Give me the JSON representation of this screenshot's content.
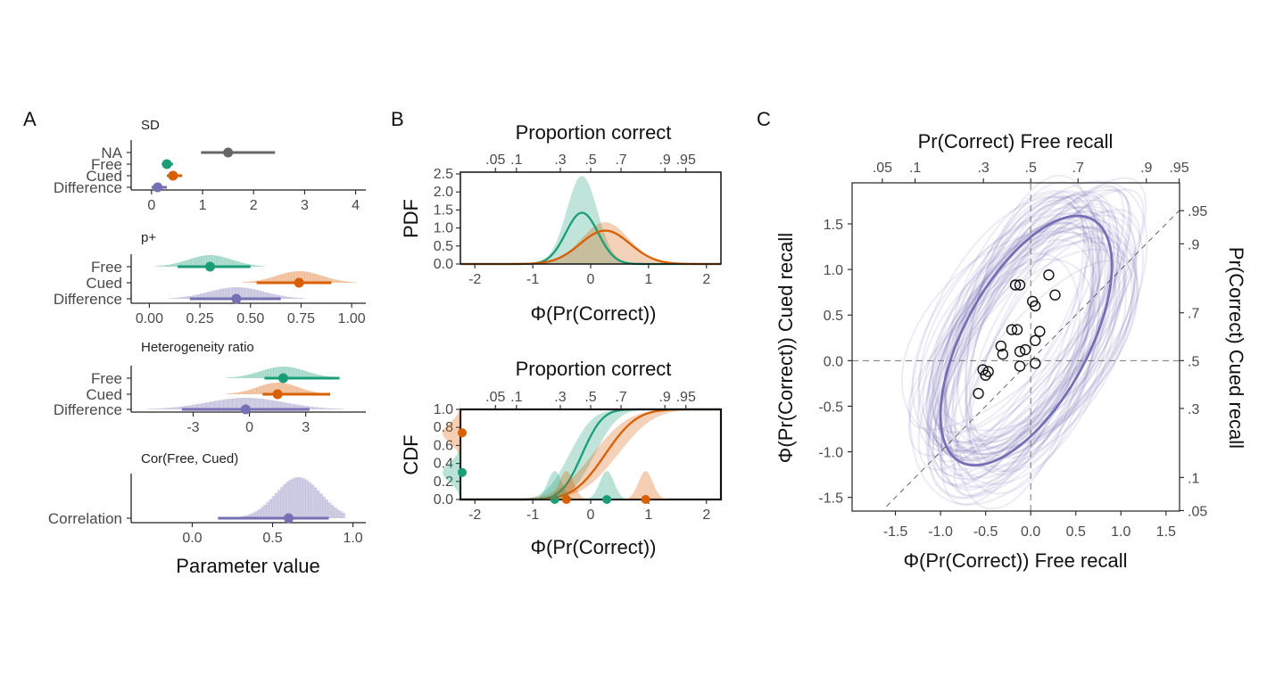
{
  "colors": {
    "na": "#666666",
    "free": "#1b9e77",
    "cued": "#d95f02",
    "difference": "#7570b3",
    "correlation": "#7570b3"
  },
  "panel_letters": {
    "a": "A",
    "b": "B",
    "c": "C"
  },
  "chart_data": [
    {
      "id": "A-sd",
      "type": "interval",
      "title": "SD",
      "xlim": [
        -0.4,
        4.2
      ],
      "xticks": [
        0,
        1,
        2,
        3,
        4
      ],
      "xtick_labels": [
        "0",
        "1",
        "2",
        "3",
        "4"
      ],
      "rows": [
        {
          "label": "NA",
          "color_key": "na",
          "median": 1.5,
          "lo": 0.97,
          "hi": 2.42
        },
        {
          "label": "Free",
          "color_key": "free",
          "median": 0.3,
          "lo": 0.2,
          "hi": 0.42
        },
        {
          "label": "Cued",
          "color_key": "cued",
          "median": 0.42,
          "lo": 0.3,
          "hi": 0.6
        },
        {
          "label": "Difference",
          "color_key": "difference",
          "median": 0.12,
          "lo": 0.0,
          "hi": 0.3
        }
      ]
    },
    {
      "id": "A-p",
      "type": "interval",
      "title": "p+",
      "xlim": [
        -0.09,
        1.07
      ],
      "xticks": [
        0,
        0.25,
        0.5,
        0.75,
        1.0
      ],
      "xtick_labels": [
        "0.00",
        "0.25",
        "0.50",
        "0.75",
        "1.00"
      ],
      "rows": [
        {
          "label": "Free",
          "color_key": "free",
          "median": 0.3,
          "lo": 0.14,
          "hi": 0.5
        },
        {
          "label": "Cued",
          "color_key": "cued",
          "median": 0.74,
          "lo": 0.53,
          "hi": 0.9
        },
        {
          "label": "Difference",
          "color_key": "difference",
          "median": 0.43,
          "lo": 0.2,
          "hi": 0.65
        }
      ]
    },
    {
      "id": "A-het",
      "type": "interval",
      "title": "Heterogeneity ratio",
      "xlim": [
        -6.3,
        6.2
      ],
      "xticks": [
        -3,
        0,
        3
      ],
      "xtick_labels": [
        "-3",
        "0",
        "3"
      ],
      "rows": [
        {
          "label": "Free",
          "color_key": "free",
          "median": 1.8,
          "lo": 0.8,
          "hi": 4.8
        },
        {
          "label": "Cued",
          "color_key": "cued",
          "median": 1.5,
          "lo": 0.7,
          "hi": 4.3
        },
        {
          "label": "Difference",
          "color_key": "difference",
          "median": -0.2,
          "lo": -3.6,
          "hi": 3.2
        }
      ]
    },
    {
      "id": "A-cor",
      "type": "interval",
      "title": "Cor(Free, Cued)",
      "xlim": [
        -0.38,
        1.08
      ],
      "xticks": [
        0,
        0.5,
        1.0
      ],
      "xtick_labels": [
        "0.0",
        "0.5",
        "1.0"
      ],
      "rows": [
        {
          "label": "Correlation",
          "color_key": "correlation",
          "median": 0.6,
          "lo": 0.16,
          "hi": 0.85
        }
      ]
    },
    {
      "id": "A-xlabel",
      "type": "label",
      "xlabel": "Parameter value"
    },
    {
      "id": "B-pdf",
      "type": "line",
      "ylabel": "PDF",
      "xlabel": "Φ(Pr(Correct))",
      "top_axis_label": "Proportion correct",
      "xlim": [
        -2.25,
        2.25
      ],
      "ylim": [
        0,
        2.55
      ],
      "xticks": [
        -2,
        -1,
        0,
        1,
        2
      ],
      "xtick_labels": [
        "-2",
        "-1",
        "0",
        "1",
        "2"
      ],
      "yticks": [
        0,
        0.5,
        1.0,
        1.5,
        2.0,
        2.5
      ],
      "ytick_labels": [
        "0.0",
        "0.5",
        "1.0",
        "1.5",
        "2.0",
        "2.5"
      ],
      "top_ticks": [
        0.05,
        0.1,
        0.3,
        0.5,
        0.7,
        0.9,
        0.95
      ],
      "top_tick_labels": [
        ".05",
        ".1",
        ".3",
        ".5",
        ".7",
        ".9",
        ".95"
      ],
      "series": [
        {
          "color_key": "free",
          "mean": -0.15,
          "sd": 0.28,
          "band_lo_scale": 0.55,
          "band_hi_scale": 1.72
        },
        {
          "color_key": "cued",
          "mean": 0.25,
          "sd": 0.43,
          "band_lo_scale": 0.55,
          "band_hi_scale": 1.25
        }
      ]
    },
    {
      "id": "B-cdf",
      "type": "line",
      "ylabel": "CDF",
      "xlabel": "Φ(Pr(Correct))",
      "top_axis_label": "Proportion correct",
      "xlim": [
        -2.25,
        2.25
      ],
      "ylim": [
        0,
        1.0
      ],
      "xticks": [
        -2,
        -1,
        0,
        1,
        2
      ],
      "xtick_labels": [
        "-2",
        "-1",
        "0",
        "1",
        "2"
      ],
      "yticks": [
        0,
        0.2,
        0.4,
        0.6,
        0.8,
        1.0
      ],
      "ytick_labels": [
        "0.0",
        "0.2",
        "0.4",
        "0.6",
        "0.8",
        "1.0"
      ],
      "top_ticks": [
        0.05,
        0.1,
        0.3,
        0.5,
        0.7,
        0.9,
        0.95
      ],
      "top_tick_labels": [
        ".05",
        ".1",
        ".3",
        ".5",
        ".7",
        ".9",
        ".95"
      ],
      "series": [
        {
          "color_key": "free",
          "mean": -0.15,
          "sd": 0.28
        },
        {
          "color_key": "cued",
          "mean": 0.25,
          "sd": 0.43
        }
      ],
      "edge_points": [
        {
          "color_key": "cued",
          "y": 0.74
        },
        {
          "color_key": "free",
          "y": 0.3
        }
      ],
      "bottom_points": [
        {
          "color_key": "free",
          "x": -0.62
        },
        {
          "color_key": "cued",
          "x": -0.42
        },
        {
          "color_key": "free",
          "x": 0.28
        },
        {
          "color_key": "cued",
          "x": 0.95
        }
      ]
    },
    {
      "id": "C",
      "type": "scatter",
      "xlabel": "Φ(Pr(Correct)) Free recall",
      "ylabel": "Φ(Pr(Correct)) Cued recall",
      "top_axis_label": "Pr(Correct) Free recall",
      "right_axis_label": "Pr(Correct) Cued recall",
      "xlim": [
        -1.98,
        1.65
      ],
      "ylim": [
        -1.65,
        1.95
      ],
      "xticks": [
        -1.5,
        -1.0,
        -0.5,
        0,
        0.5,
        1.0,
        1.5
      ],
      "xtick_labels": [
        "-1.5",
        "-1.0",
        "-0.5",
        "0.0",
        "0.5",
        "1.0",
        "1.5"
      ],
      "yticks": [
        -1.5,
        -1.0,
        -0.5,
        0,
        0.5,
        1.0,
        1.5
      ],
      "ytick_labels": [
        "-1.5",
        "-1.0",
        "-0.5",
        "0.0",
        "0.5",
        "1.0",
        "1.5"
      ],
      "top_ticks": [
        0.05,
        0.1,
        0.3,
        0.5,
        0.7,
        0.9,
        0.95
      ],
      "top_tick_labels": [
        ".05",
        ".1",
        ".3",
        ".5",
        ".7",
        ".9",
        ".95"
      ],
      "right_ticks": [
        0.05,
        0.1,
        0.3,
        0.5,
        0.7,
        0.9,
        0.95
      ],
      "right_tick_labels": [
        ".05",
        ".1",
        ".3",
        ".5",
        ".7",
        ".9",
        ".95"
      ],
      "ellipse": {
        "cx": -0.05,
        "cy": 0.22,
        "sx": 0.5,
        "sy": 0.72,
        "r": 0.6,
        "k": 1.9
      },
      "points": [
        {
          "x": -0.58,
          "y": -0.36
        },
        {
          "x": -0.53,
          "y": -0.1
        },
        {
          "x": -0.47,
          "y": -0.12
        },
        {
          "x": -0.5,
          "y": -0.16
        },
        {
          "x": -0.31,
          "y": 0.07
        },
        {
          "x": -0.33,
          "y": 0.16
        },
        {
          "x": -0.21,
          "y": 0.34
        },
        {
          "x": -0.15,
          "y": 0.34
        },
        {
          "x": -0.12,
          "y": 0.1
        },
        {
          "x": -0.06,
          "y": 0.12
        },
        {
          "x": 0.05,
          "y": 0.22
        },
        {
          "x": 0.1,
          "y": 0.32
        },
        {
          "x": -0.12,
          "y": -0.06
        },
        {
          "x": 0.05,
          "y": -0.03
        },
        {
          "x": -0.17,
          "y": 0.83
        },
        {
          "x": -0.12,
          "y": 0.83
        },
        {
          "x": 0.02,
          "y": 0.65
        },
        {
          "x": 0.05,
          "y": 0.6
        },
        {
          "x": 0.2,
          "y": 0.94
        },
        {
          "x": 0.27,
          "y": 0.72
        }
      ]
    }
  ]
}
